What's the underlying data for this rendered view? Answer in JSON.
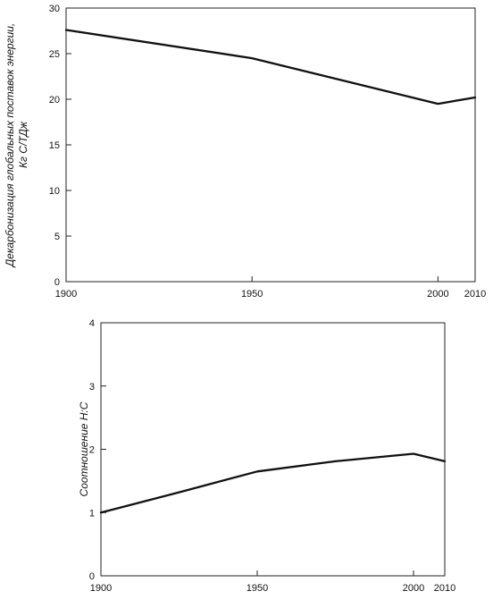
{
  "chart_data": [
    {
      "type": "line",
      "title": "",
      "xlabel": "",
      "ylabel_line1": "Декарбонизация глобальных поставок энергии,",
      "ylabel_line2": "Кг С/ТДж",
      "xlim": [
        1900,
        2010
      ],
      "ylim": [
        0,
        30
      ],
      "xticks": [
        1900,
        1950,
        2000,
        2010
      ],
      "yticks": [
        0,
        5,
        10,
        15,
        20,
        25,
        30
      ],
      "grid": false,
      "series": [
        {
          "x": [
            1900,
            1950,
            2000,
            2010
          ],
          "values": [
            27.6,
            24.5,
            19.5,
            20.2
          ]
        }
      ]
    },
    {
      "type": "line",
      "title": "",
      "xlabel": "",
      "ylabel": "Соотношение Н:С",
      "xlim": [
        1900,
        2010
      ],
      "ylim": [
        0,
        4
      ],
      "xticks": [
        1900,
        1950,
        2000,
        2010
      ],
      "yticks": [
        0,
        1,
        2,
        3,
        4
      ],
      "grid": false,
      "series": [
        {
          "x": [
            1900,
            1925,
            1950,
            1975,
            2000,
            2010
          ],
          "values": [
            1.0,
            1.32,
            1.65,
            1.81,
            1.93,
            1.81
          ]
        }
      ]
    }
  ]
}
